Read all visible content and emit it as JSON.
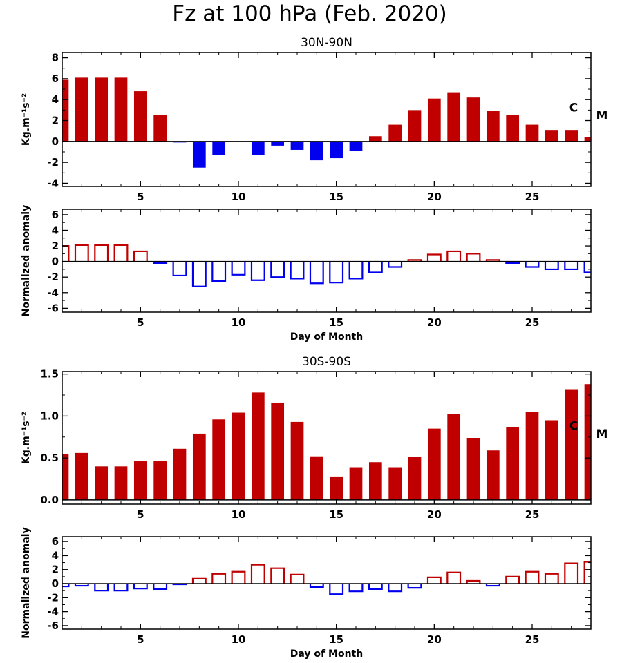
{
  "figure": {
    "title": "Fz at 100 hPa (Feb. 2020)"
  },
  "chart_data": [
    {
      "type": "bar",
      "title": "30N-90N",
      "xlabel": "",
      "ylabel": "Kg.m⁻¹s⁻²",
      "xlim": [
        1,
        28
      ],
      "ylim": [
        -4.3,
        8.5
      ],
      "xticks": [
        5,
        10,
        15,
        20,
        25
      ],
      "yticks": [
        -4,
        -2,
        0,
        2,
        4,
        6,
        8
      ],
      "style": "filled",
      "annotations": [
        {
          "text": "C",
          "at": "right-inside"
        },
        {
          "text": "M",
          "at": "right-outside"
        }
      ],
      "x": [
        1,
        2,
        3,
        4,
        5,
        6,
        7,
        8,
        9,
        10,
        11,
        12,
        13,
        14,
        15,
        16,
        17,
        18,
        19,
        20,
        21,
        22,
        23,
        24,
        25,
        26,
        27,
        28
      ],
      "values": [
        5.9,
        6.1,
        6.1,
        6.1,
        4.8,
        2.5,
        -0.1,
        -2.5,
        -1.3,
        0,
        -1.3,
        -0.4,
        -0.8,
        -1.8,
        -1.6,
        -0.9,
        0.5,
        1.6,
        3.0,
        4.1,
        4.7,
        4.2,
        2.9,
        2.5,
        1.6,
        1.1,
        1.1,
        0.4
      ]
    },
    {
      "type": "bar",
      "title": "",
      "xlabel": "Day of Month",
      "ylabel": "Normalized anomaly",
      "xlim": [
        1,
        28
      ],
      "ylim": [
        -6.5,
        6.7
      ],
      "xticks": [
        5,
        10,
        15,
        20,
        25
      ],
      "yticks": [
        -6,
        -4,
        -2,
        0,
        2,
        4,
        6
      ],
      "style": "outline",
      "x": [
        1,
        2,
        3,
        4,
        5,
        6,
        7,
        8,
        9,
        10,
        11,
        12,
        13,
        14,
        15,
        16,
        17,
        18,
        19,
        20,
        21,
        22,
        23,
        24,
        25,
        26,
        27,
        28
      ],
      "values": [
        2.0,
        2.1,
        2.1,
        2.1,
        1.3,
        -0.2,
        -1.8,
        -3.2,
        -2.5,
        -1.7,
        -2.4,
        -2.0,
        -2.2,
        -2.8,
        -2.7,
        -2.2,
        -1.4,
        -0.7,
        0.2,
        0.9,
        1.3,
        1.0,
        0.2,
        -0.2,
        -0.7,
        -1.0,
        -1.0,
        -1.4
      ]
    },
    {
      "type": "bar",
      "title": "30S-90S",
      "xlabel": "",
      "ylabel": "Kg.m⁻¹s⁻²",
      "xlim": [
        1,
        28
      ],
      "ylim": [
        -0.05,
        1.53
      ],
      "xticks": [
        5,
        10,
        15,
        20,
        25
      ],
      "yticks": [
        "0.0",
        "0.5",
        "1.0",
        "1.5"
      ],
      "style": "filled",
      "annotations": [
        {
          "text": "C",
          "at": "right-inside"
        },
        {
          "text": "M",
          "at": "right-outside"
        }
      ],
      "x": [
        1,
        2,
        3,
        4,
        5,
        6,
        7,
        8,
        9,
        10,
        11,
        12,
        13,
        14,
        15,
        16,
        17,
        18,
        19,
        20,
        21,
        22,
        23,
        24,
        25,
        26,
        27,
        28
      ],
      "values": [
        0.55,
        0.56,
        0.4,
        0.4,
        0.46,
        0.46,
        0.61,
        0.79,
        0.96,
        1.04,
        1.28,
        1.16,
        0.93,
        0.52,
        0.28,
        0.39,
        0.45,
        0.39,
        0.51,
        0.85,
        1.02,
        0.74,
        0.59,
        0.87,
        1.05,
        0.95,
        1.32,
        1.38
      ]
    },
    {
      "type": "bar",
      "title": "",
      "xlabel": "Day of Month",
      "ylabel": "Normalized anomaly",
      "xlim": [
        1,
        28
      ],
      "ylim": [
        -6.5,
        6.7
      ],
      "xticks": [
        5,
        10,
        15,
        20,
        25
      ],
      "yticks": [
        -6,
        -4,
        -2,
        0,
        2,
        4,
        6
      ],
      "style": "outline",
      "x": [
        1,
        2,
        3,
        4,
        5,
        6,
        7,
        8,
        9,
        10,
        11,
        12,
        13,
        14,
        15,
        16,
        17,
        18,
        19,
        20,
        21,
        22,
        23,
        24,
        25,
        26,
        27,
        28
      ],
      "values": [
        -0.4,
        -0.3,
        -1.0,
        -1.0,
        -0.7,
        -0.8,
        -0.1,
        0.7,
        1.4,
        1.7,
        2.7,
        2.2,
        1.3,
        -0.5,
        -1.5,
        -1.1,
        -0.8,
        -1.1,
        -0.6,
        0.9,
        1.6,
        0.4,
        -0.3,
        1.0,
        1.7,
        1.4,
        2.9,
        3.1
      ]
    }
  ],
  "colors": {
    "positive": "#c00000",
    "negative": "#0000ee",
    "axis": "#000000"
  }
}
